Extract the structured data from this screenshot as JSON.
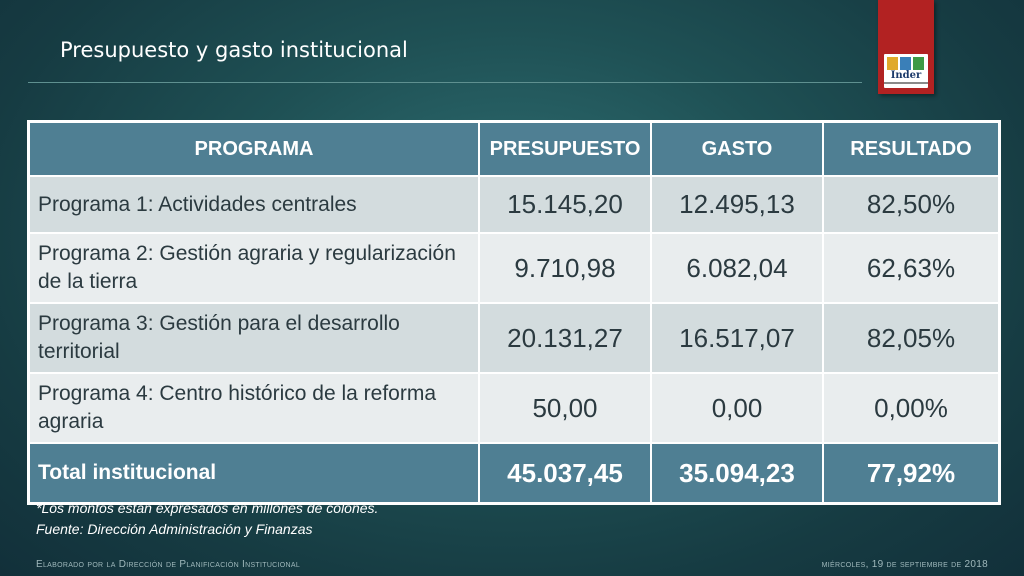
{
  "slide": {
    "title": "Presupuesto y gasto institucional"
  },
  "logo": {
    "text": "Inder",
    "colors": [
      "#e0a92a",
      "#3a7fb8",
      "#3e9a45"
    ],
    "tab_color": "#b22222"
  },
  "table": {
    "headers": [
      "PROGRAMA",
      "PRESUPUESTO",
      "GASTO",
      "RESULTADO"
    ],
    "rows": [
      {
        "programa": "Programa 1: Actividades centrales",
        "presupuesto": "15.145,20",
        "gasto": "12.495,13",
        "resultado": "82,50%"
      },
      {
        "programa": "Programa 2: Gestión agraria y regularización de la tierra",
        "presupuesto": "9.710,98",
        "gasto": "6.082,04",
        "resultado": "62,63%"
      },
      {
        "programa": "Programa 3: Gestión para el desarrollo territorial",
        "presupuesto": "20.131,27",
        "gasto": "16.517,07",
        "resultado": "82,05%"
      },
      {
        "programa": "Programa 4: Centro histórico de la reforma agraria",
        "presupuesto": "50,00",
        "gasto": "0,00",
        "resultado": "0,00%"
      }
    ],
    "total": {
      "programa": "Total institucional",
      "presupuesto": "45.037,45",
      "gasto": "35.094,23",
      "resultado": "77,92%"
    },
    "header_color": "#4f7f93"
  },
  "notes": {
    "line1": "*Los montos están expresados en millones de colones.",
    "line2": "Fuente: Dirección Administración y Finanzas"
  },
  "footer": {
    "left": "Elaborado por la Dirección de Planificación Institucional",
    "right": "miércoles, 19 de septiembre de 2018"
  }
}
